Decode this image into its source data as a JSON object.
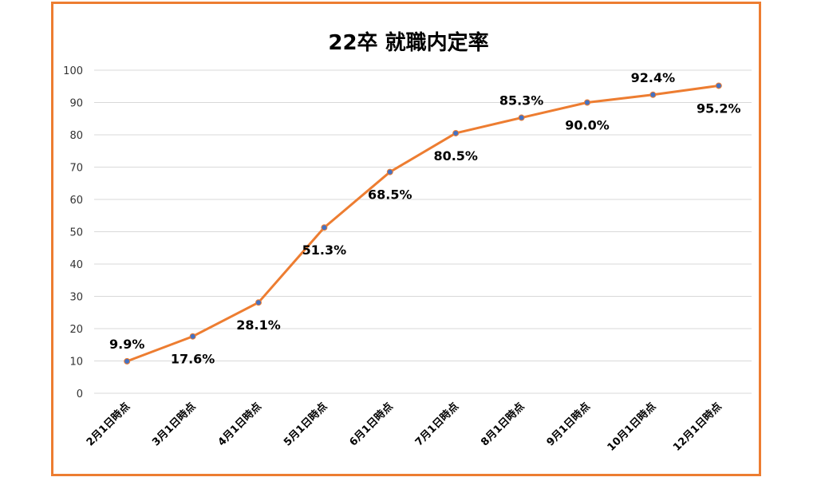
{
  "chart_data": {
    "type": "line",
    "title": "22卒 就職内定率",
    "categories": [
      "2月1日時点",
      "3月1日時点",
      "4月1日時点",
      "5月1日時点",
      "6月1日時点",
      "7月1日時点",
      "8月1日時点",
      "9月1日時点",
      "10月1日時点",
      "12月1日時点"
    ],
    "values": [
      9.9,
      17.6,
      28.1,
      51.3,
      68.5,
      80.5,
      85.3,
      90.0,
      92.4,
      95.2
    ],
    "data_labels": [
      "9.9%",
      "17.6%",
      "28.1%",
      "51.3%",
      "68.5%",
      "80.5%",
      "85.3%",
      "90.0%",
      "92.4%",
      "95.2%"
    ],
    "yticks": [
      "0",
      "10",
      "20",
      "30",
      "40",
      "50",
      "60",
      "70",
      "80",
      "90",
      "100"
    ],
    "ylim": [
      0,
      100
    ],
    "grid": true,
    "legend": "none",
    "colors": {
      "line": "#ED7D31",
      "marker": "#4472C4",
      "frame": "#ED7D31"
    }
  }
}
